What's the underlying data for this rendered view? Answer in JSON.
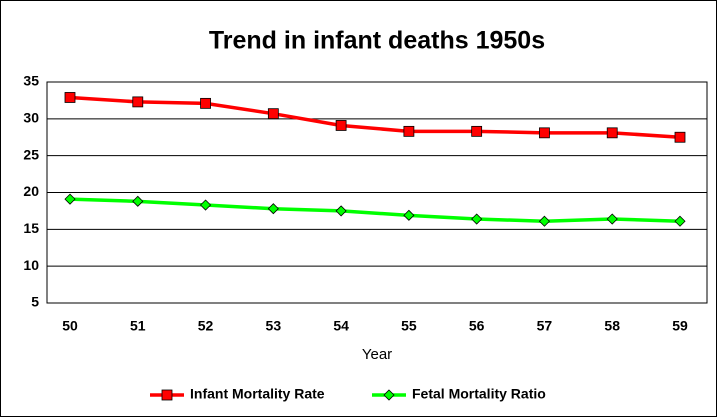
{
  "chart_data": {
    "type": "line",
    "title": "Trend in infant deaths 1950s",
    "x_label": "Year",
    "categories": [
      "50",
      "51",
      "52",
      "53",
      "54",
      "55",
      "56",
      "57",
      "58",
      "59"
    ],
    "series": [
      {
        "name": "Infant Mortality Rate",
        "color": "#ff0000",
        "marker": "square",
        "values": [
          32.9,
          32.3,
          32.1,
          30.7,
          29.1,
          28.3,
          28.3,
          28.1,
          28.1,
          27.5
        ]
      },
      {
        "name": "Fetal Mortality Ratio",
        "color": "#00ff00",
        "marker": "diamond",
        "values": [
          19.1,
          18.8,
          18.3,
          17.8,
          17.5,
          16.9,
          16.4,
          16.1,
          16.4,
          16.1
        ]
      }
    ],
    "ylim": [
      5,
      35
    ],
    "yticks": [
      5,
      10,
      15,
      20,
      25,
      30,
      35
    ],
    "grid": true,
    "legend": "bottom"
  }
}
